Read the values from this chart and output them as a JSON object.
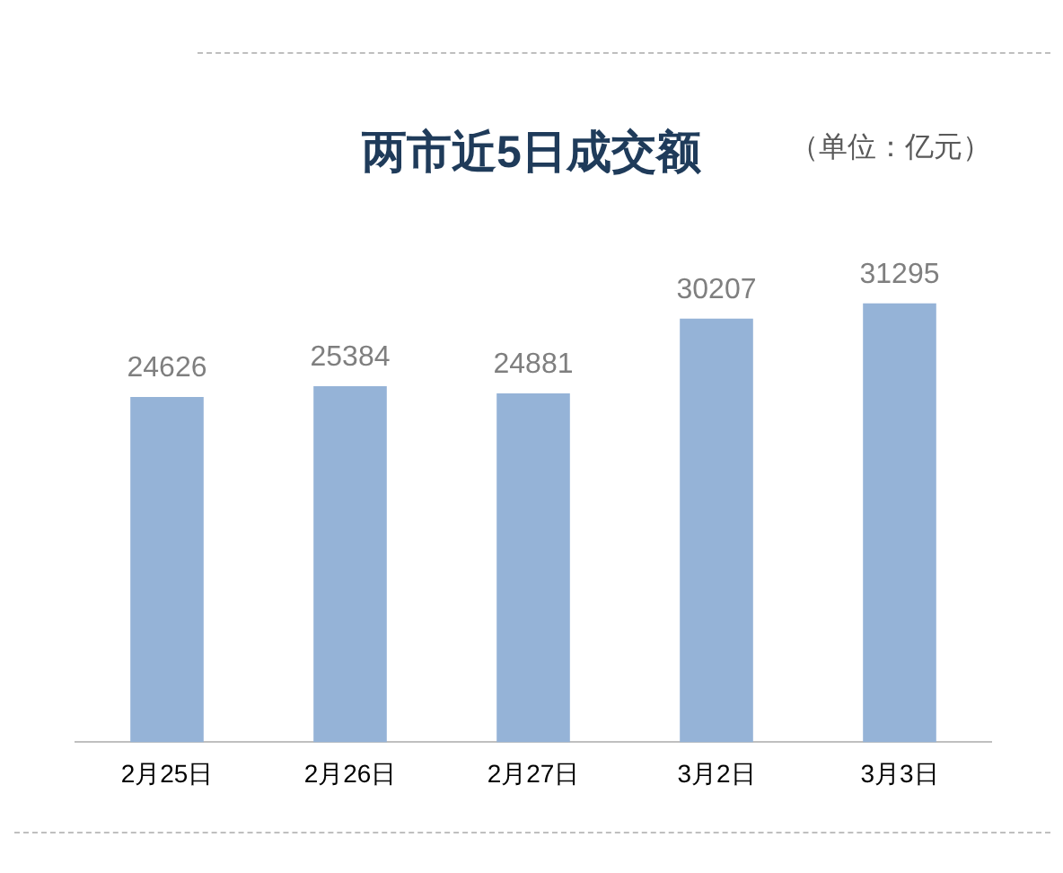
{
  "chart_data": {
    "type": "bar",
    "title": "两市近5日成交额",
    "annotations": [
      "（单位：亿元）"
    ],
    "categories": [
      "2月25日",
      "2月26日",
      "2月27日",
      "3月2日",
      "3月3日"
    ],
    "values": [
      24626,
      25384,
      24881,
      30207,
      31295
    ],
    "color": "#95b3d7",
    "data_labels": true,
    "grid": false,
    "legend": false
  }
}
